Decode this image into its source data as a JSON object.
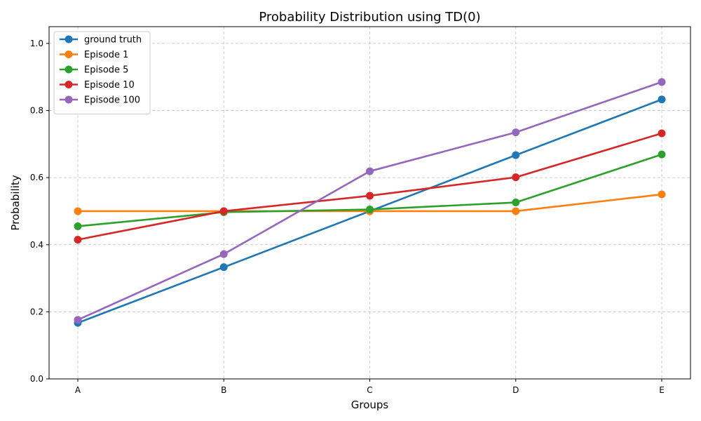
{
  "chart_data": {
    "type": "line",
    "title": "Probability Distribution using TD(0)",
    "xlabel": "Groups",
    "ylabel": "Probability",
    "categories": [
      "A",
      "B",
      "C",
      "D",
      "E"
    ],
    "ylim": [
      0.0,
      1.05
    ],
    "yticks": [
      0.0,
      0.2,
      0.4,
      0.6,
      0.8,
      1.0
    ],
    "ytick_labels": [
      "0.0",
      "0.2",
      "0.4",
      "0.6",
      "0.8",
      "1.0"
    ],
    "grid": true,
    "legend_position": "top-left",
    "series": [
      {
        "name": "ground truth",
        "color": "#1f77b4",
        "values": [
          0.167,
          0.333,
          0.5,
          0.667,
          0.833
        ]
      },
      {
        "name": "Episode 1",
        "color": "#ff7f0e",
        "values": [
          0.5,
          0.5,
          0.5,
          0.5,
          0.55
        ]
      },
      {
        "name": "Episode 5",
        "color": "#2ca02c",
        "values": [
          0.455,
          0.497,
          0.505,
          0.526,
          0.669
        ]
      },
      {
        "name": "Episode 10",
        "color": "#d62728",
        "values": [
          0.415,
          0.5,
          0.546,
          0.601,
          0.732
        ]
      },
      {
        "name": "Episode 100",
        "color": "#9467bd",
        "values": [
          0.176,
          0.372,
          0.619,
          0.735,
          0.885
        ]
      }
    ]
  }
}
